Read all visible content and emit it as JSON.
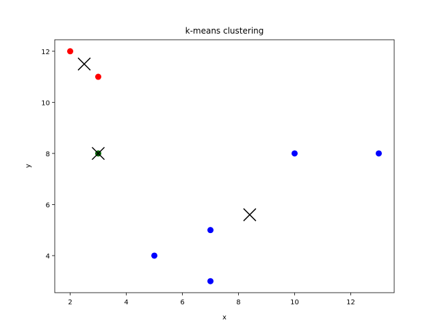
{
  "chart_data": {
    "type": "scatter",
    "title": "k-means clustering",
    "xlabel": "x",
    "ylabel": "y",
    "xlim": [
      1.45,
      13.55
    ],
    "ylim": [
      2.55,
      12.45
    ],
    "xticks": [
      2,
      4,
      6,
      8,
      10,
      12
    ],
    "yticks": [
      4,
      6,
      8,
      10,
      12
    ],
    "grid": false,
    "points": [
      {
        "x": 2,
        "y": 12,
        "color": "#ff0000"
      },
      {
        "x": 3,
        "y": 11,
        "color": "#ff0000"
      },
      {
        "x": 3,
        "y": 8,
        "color": "#006400"
      },
      {
        "x": 5,
        "y": 4,
        "color": "#0000ff"
      },
      {
        "x": 7,
        "y": 5,
        "color": "#0000ff"
      },
      {
        "x": 7,
        "y": 3,
        "color": "#0000ff"
      },
      {
        "x": 10,
        "y": 8,
        "color": "#0000ff"
      },
      {
        "x": 13,
        "y": 8,
        "color": "#0000ff"
      }
    ],
    "centroids": [
      {
        "x": 2.5,
        "y": 11.5
      },
      {
        "x": 3,
        "y": 8
      },
      {
        "x": 8.4,
        "y": 5.6
      }
    ]
  }
}
